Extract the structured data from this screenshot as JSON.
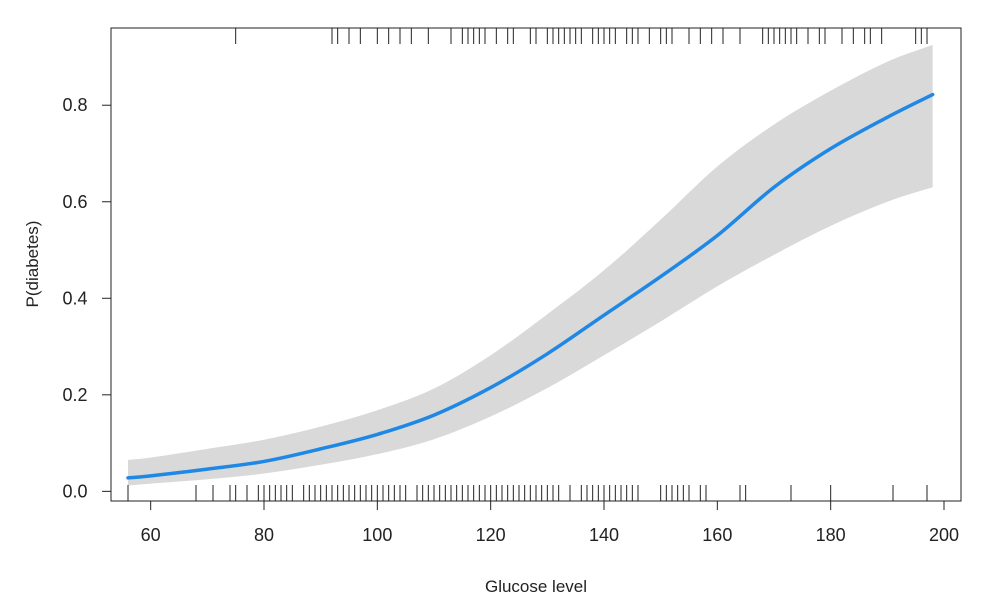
{
  "chart_data": {
    "type": "line",
    "title": "",
    "xlabel": "Glucose level",
    "ylabel": "P(diabetes)",
    "xlim": [
      53,
      203
    ],
    "ylim": [
      -0.02,
      0.96
    ],
    "x_ticks": [
      60,
      80,
      100,
      120,
      140,
      160,
      180,
      200
    ],
    "x_tick_labels": [
      "60",
      "80",
      "100",
      "120",
      "140",
      "160",
      "180",
      "200"
    ],
    "y_ticks": [
      0.0,
      0.2,
      0.4,
      0.6,
      0.8
    ],
    "y_tick_labels": [
      "0.0",
      "0.2",
      "0.4",
      "0.6",
      "0.8"
    ],
    "grid": false,
    "colors": {
      "line": "#1f88e5",
      "band": "#d9d9d9",
      "axis": "#222222"
    },
    "series": [
      {
        "x": [
          56,
          60,
          70,
          80,
          90,
          100,
          110,
          120,
          130,
          140,
          150,
          160,
          170,
          180,
          190,
          198
        ],
        "y": [
          0.028,
          0.032,
          0.046,
          0.062,
          0.088,
          0.118,
          0.158,
          0.215,
          0.285,
          0.365,
          0.445,
          0.53,
          0.63,
          0.71,
          0.775,
          0.822
        ],
        "lower": [
          0.012,
          0.016,
          0.025,
          0.037,
          0.055,
          0.077,
          0.108,
          0.155,
          0.214,
          0.282,
          0.352,
          0.425,
          0.49,
          0.55,
          0.6,
          0.63
        ],
        "upper": [
          0.065,
          0.07,
          0.088,
          0.107,
          0.134,
          0.168,
          0.213,
          0.282,
          0.367,
          0.458,
          0.563,
          0.673,
          0.76,
          0.83,
          0.89,
          0.925
        ]
      }
    ],
    "rug_top": [
      75,
      92,
      93,
      95,
      97,
      100,
      102,
      104,
      106,
      109,
      113,
      115,
      116,
      117,
      118,
      119,
      121,
      123,
      124,
      127,
      128,
      130,
      131,
      132,
      133,
      134,
      135,
      136,
      138,
      139,
      140,
      141,
      142,
      144,
      145,
      146,
      148,
      150,
      151,
      152,
      155,
      157,
      159,
      161,
      164,
      168,
      169,
      170,
      171,
      172,
      173,
      174,
      176,
      178,
      179,
      182,
      184,
      186,
      187,
      189,
      195,
      196,
      197
    ],
    "rug_bottom": [
      56,
      68,
      71,
      74,
      75,
      77,
      79,
      80,
      81,
      82,
      83,
      84,
      85,
      87,
      88,
      89,
      90,
      91,
      92,
      93,
      94,
      95,
      96,
      97,
      98,
      99,
      100,
      101,
      102,
      103,
      104,
      105,
      107,
      108,
      109,
      110,
      111,
      112,
      113,
      114,
      115,
      116,
      117,
      118,
      119,
      120,
      121,
      122,
      123,
      124,
      125,
      126,
      127,
      128,
      129,
      130,
      131,
      132,
      134,
      136,
      137,
      138,
      139,
      140,
      141,
      142,
      143,
      144,
      145,
      146,
      150,
      151,
      152,
      153,
      154,
      155,
      157,
      158,
      164,
      165,
      173,
      180,
      191,
      197
    ]
  }
}
